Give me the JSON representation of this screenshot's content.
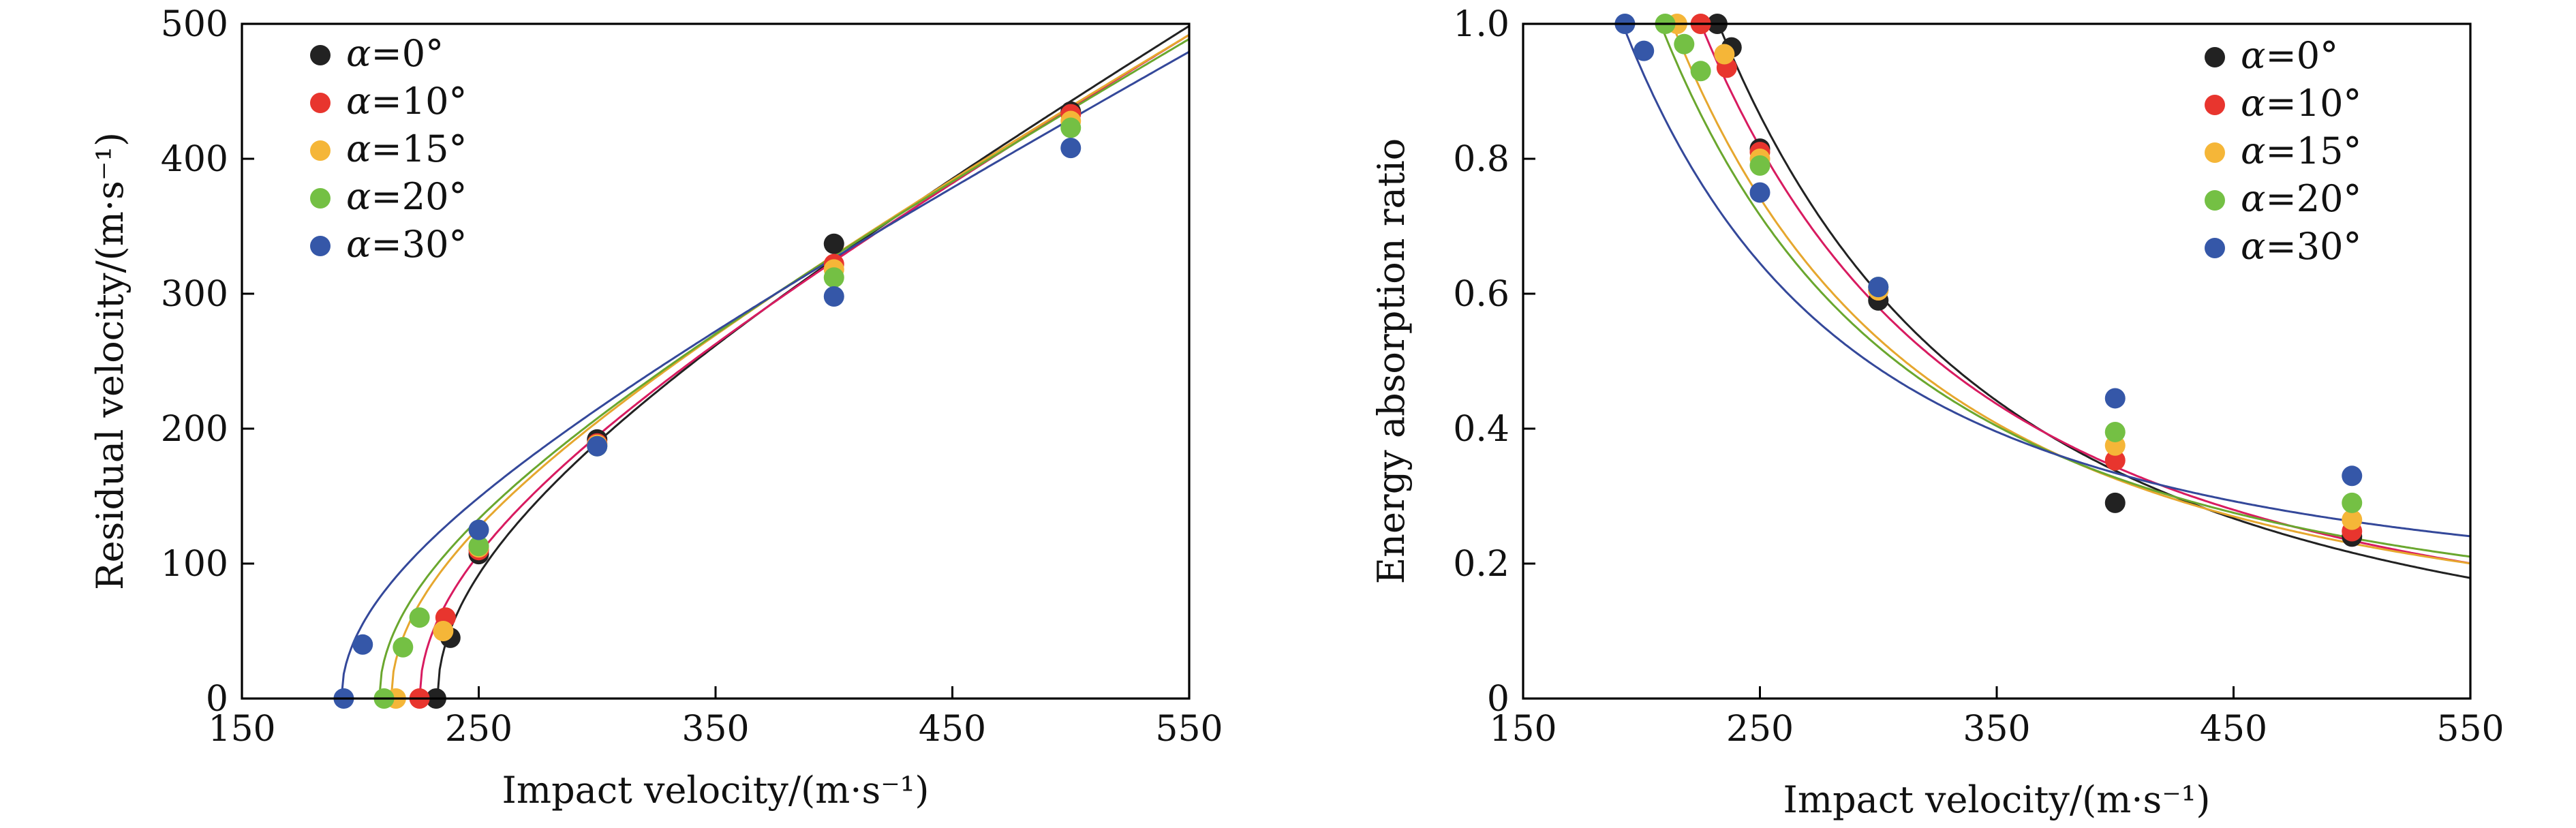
{
  "colors": {
    "a0": "#222222",
    "a10": "#e8352e",
    "a15": "#f5b638",
    "a20": "#74c044",
    "a30": "#3557a8",
    "curve_a10": "#d81b60",
    "curve_a15": "#e6a72e",
    "curve_a20": "#6aa72e",
    "curve_a30": "#34489a"
  },
  "chart_data": [
    {
      "type": "scatter",
      "xlabel": "Impact velocity/(m·s⁻¹)",
      "ylabel": "Residual velocity/(m·s⁻¹)",
      "xlim": [
        150,
        550
      ],
      "ylim": [
        0,
        500
      ],
      "xticks": [
        150,
        250,
        350,
        450,
        550
      ],
      "yticks": [
        0,
        100,
        200,
        300,
        400,
        500
      ],
      "legend_position": "top-left",
      "series": [
        {
          "name": "α=0°",
          "color_key": "a0",
          "x": [
            232,
            238,
            250,
            300,
            400,
            500
          ],
          "y": [
            0,
            45,
            107,
            192,
            337,
            435
          ],
          "curve_kind": "residual",
          "vbl": 232.5,
          "k": 1.0
        },
        {
          "name": "α=10°",
          "color_key": "a10",
          "x": [
            225,
            236,
            250,
            300,
            400,
            500
          ],
          "y": [
            0,
            60,
            110,
            189,
            322,
            433
          ],
          "curve_kind": "residual",
          "vbl": 225,
          "k": 0.98
        },
        {
          "name": "α=15°",
          "color_key": "a15",
          "x": [
            215,
            235,
            250,
            300,
            400,
            500
          ],
          "y": [
            0,
            50,
            112,
            188,
            318,
            428
          ],
          "curve_kind": "residual",
          "vbl": 213,
          "k": 0.97
        },
        {
          "name": "α=20°",
          "color_key": "a20",
          "x": [
            210,
            218,
            225,
            250,
            300,
            400,
            500
          ],
          "y": [
            0,
            38,
            60,
            113,
            187,
            312,
            423
          ],
          "curve_kind": "residual",
          "vbl": 208,
          "k": 0.96
        },
        {
          "name": "α=30°",
          "color_key": "a30",
          "x": [
            193,
            201,
            250,
            300,
            400,
            500
          ],
          "y": [
            0,
            40,
            125,
            187,
            298,
            408
          ],
          "curve_kind": "residual",
          "vbl": 192,
          "k": 0.93
        }
      ]
    },
    {
      "type": "scatter",
      "xlabel": "Impact velocity/(m·s⁻¹)",
      "ylabel": "Energy absorption ratio",
      "xlim": [
        150,
        550
      ],
      "ylim": [
        0,
        1.0
      ],
      "xticks": [
        150,
        250,
        350,
        450,
        550
      ],
      "yticks": [
        0,
        0.2,
        0.4,
        0.6,
        0.8,
        1.0
      ],
      "legend_position": "top-right",
      "series": [
        {
          "name": "α=0°",
          "color_key": "a0",
          "x": [
            232,
            238,
            250,
            300,
            400,
            500
          ],
          "y": [
            1.0,
            0.965,
            0.815,
            0.59,
            0.29,
            0.24
          ],
          "curve_kind": "energy",
          "vbl": 232.5,
          "k": 1.0
        },
        {
          "name": "α=10°",
          "color_key": "a10",
          "x": [
            225,
            236,
            250,
            300,
            400,
            500
          ],
          "y": [
            1.0,
            0.935,
            0.81,
            0.605,
            0.353,
            0.248
          ],
          "curve_kind": "energy",
          "vbl": 225,
          "k": 0.98
        },
        {
          "name": "α=15°",
          "color_key": "a15",
          "x": [
            215,
            235,
            250,
            300,
            400,
            500
          ],
          "y": [
            1.0,
            0.955,
            0.8,
            0.605,
            0.375,
            0.265
          ],
          "curve_kind": "energy",
          "vbl": 213,
          "k": 0.97
        },
        {
          "name": "α=20°",
          "color_key": "a20",
          "x": [
            210,
            218,
            225,
            250,
            300,
            400,
            500
          ],
          "y": [
            1.0,
            0.97,
            0.93,
            0.79,
            0.61,
            0.395,
            0.29
          ],
          "curve_kind": "energy",
          "vbl": 208,
          "k": 0.96
        },
        {
          "name": "α=30°",
          "color_key": "a30",
          "x": [
            193,
            201,
            250,
            300,
            400,
            500
          ],
          "y": [
            1.0,
            0.96,
            0.75,
            0.61,
            0.445,
            0.33
          ],
          "curve_kind": "energy",
          "vbl": 192,
          "k": 0.93
        }
      ]
    }
  ]
}
